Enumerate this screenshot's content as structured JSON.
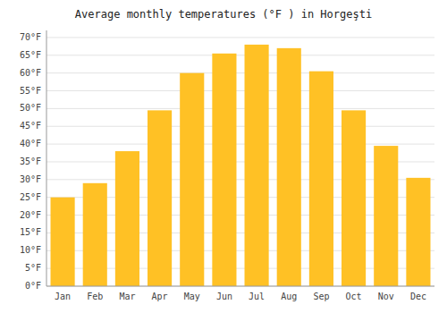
{
  "chart_data": {
    "type": "bar",
    "title": "Average monthly temperatures (°F ) in Horgeşti",
    "categories": [
      "Jan",
      "Feb",
      "Mar",
      "Apr",
      "May",
      "Jun",
      "Jul",
      "Aug",
      "Sep",
      "Oct",
      "Nov",
      "Dec"
    ],
    "values": [
      25,
      29,
      38,
      49.5,
      60,
      65.5,
      68,
      67,
      60.5,
      49.5,
      39.5,
      30.5
    ],
    "color": "#FFC125",
    "ylim": [
      0,
      72
    ],
    "yticks": [
      {
        "value": 0,
        "label": "0°F"
      },
      {
        "value": 5,
        "label": "5°F"
      },
      {
        "value": 10,
        "label": "10°F"
      },
      {
        "value": 15,
        "label": "15°F"
      },
      {
        "value": 20,
        "label": "20°F"
      },
      {
        "value": 25,
        "label": "25°F"
      },
      {
        "value": 30,
        "label": "30°F"
      },
      {
        "value": 35,
        "label": "35°F"
      },
      {
        "value": 40,
        "label": "40°F"
      },
      {
        "value": 45,
        "label": "45°F"
      },
      {
        "value": 50,
        "label": "50°F"
      },
      {
        "value": 55,
        "label": "55°F"
      },
      {
        "value": 60,
        "label": "60°F"
      },
      {
        "value": 65,
        "label": "65°F"
      },
      {
        "value": 70,
        "label": "70°F"
      }
    ],
    "grid": true
  }
}
